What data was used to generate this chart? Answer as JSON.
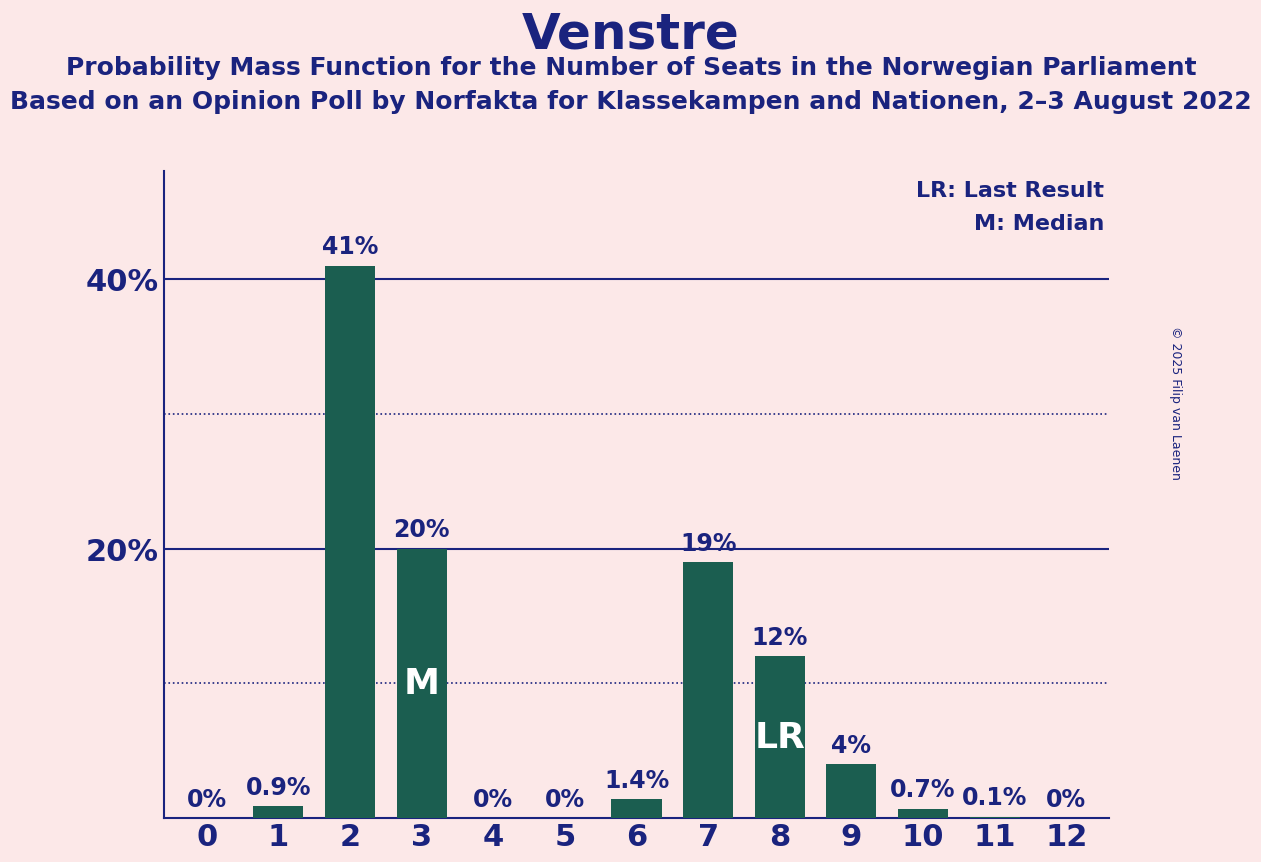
{
  "title": "Venstre",
  "subtitle1": "Probability Mass Function for the Number of Seats in the Norwegian Parliament",
  "subtitle2": "Based on an Opinion Poll by Norfakta for Klassekampen and Nationen, 2–3 August 2022",
  "copyright": "© 2025 Filip van Laenen",
  "categories": [
    0,
    1,
    2,
    3,
    4,
    5,
    6,
    7,
    8,
    9,
    10,
    11,
    12
  ],
  "values": [
    0.0,
    0.9,
    41.0,
    20.0,
    0.0,
    0.0,
    1.4,
    19.0,
    12.0,
    4.0,
    0.7,
    0.1,
    0.0
  ],
  "labels": [
    "0%",
    "0.9%",
    "41%",
    "20%",
    "0%",
    "0%",
    "1.4%",
    "19%",
    "12%",
    "4%",
    "0.7%",
    "0.1%",
    "0%"
  ],
  "bar_color": "#1b5e50",
  "background_color": "#fce8e8",
  "text_color": "#1a237e",
  "title_fontsize": 36,
  "subtitle_fontsize": 18,
  "label_fontsize": 17,
  "tick_fontsize": 22,
  "ytick_labels": [
    "20%",
    "40%"
  ],
  "ytick_values": [
    20,
    40
  ],
  "dotted_lines": [
    10,
    30
  ],
  "solid_lines": [
    20,
    40
  ],
  "median_bar": 3,
  "lr_bar": 8,
  "legend_lr": "LR: Last Result",
  "legend_m": "M: Median",
  "legend_fontsize": 16,
  "annotation_fontsize": 26,
  "ylim": [
    0,
    48
  ]
}
